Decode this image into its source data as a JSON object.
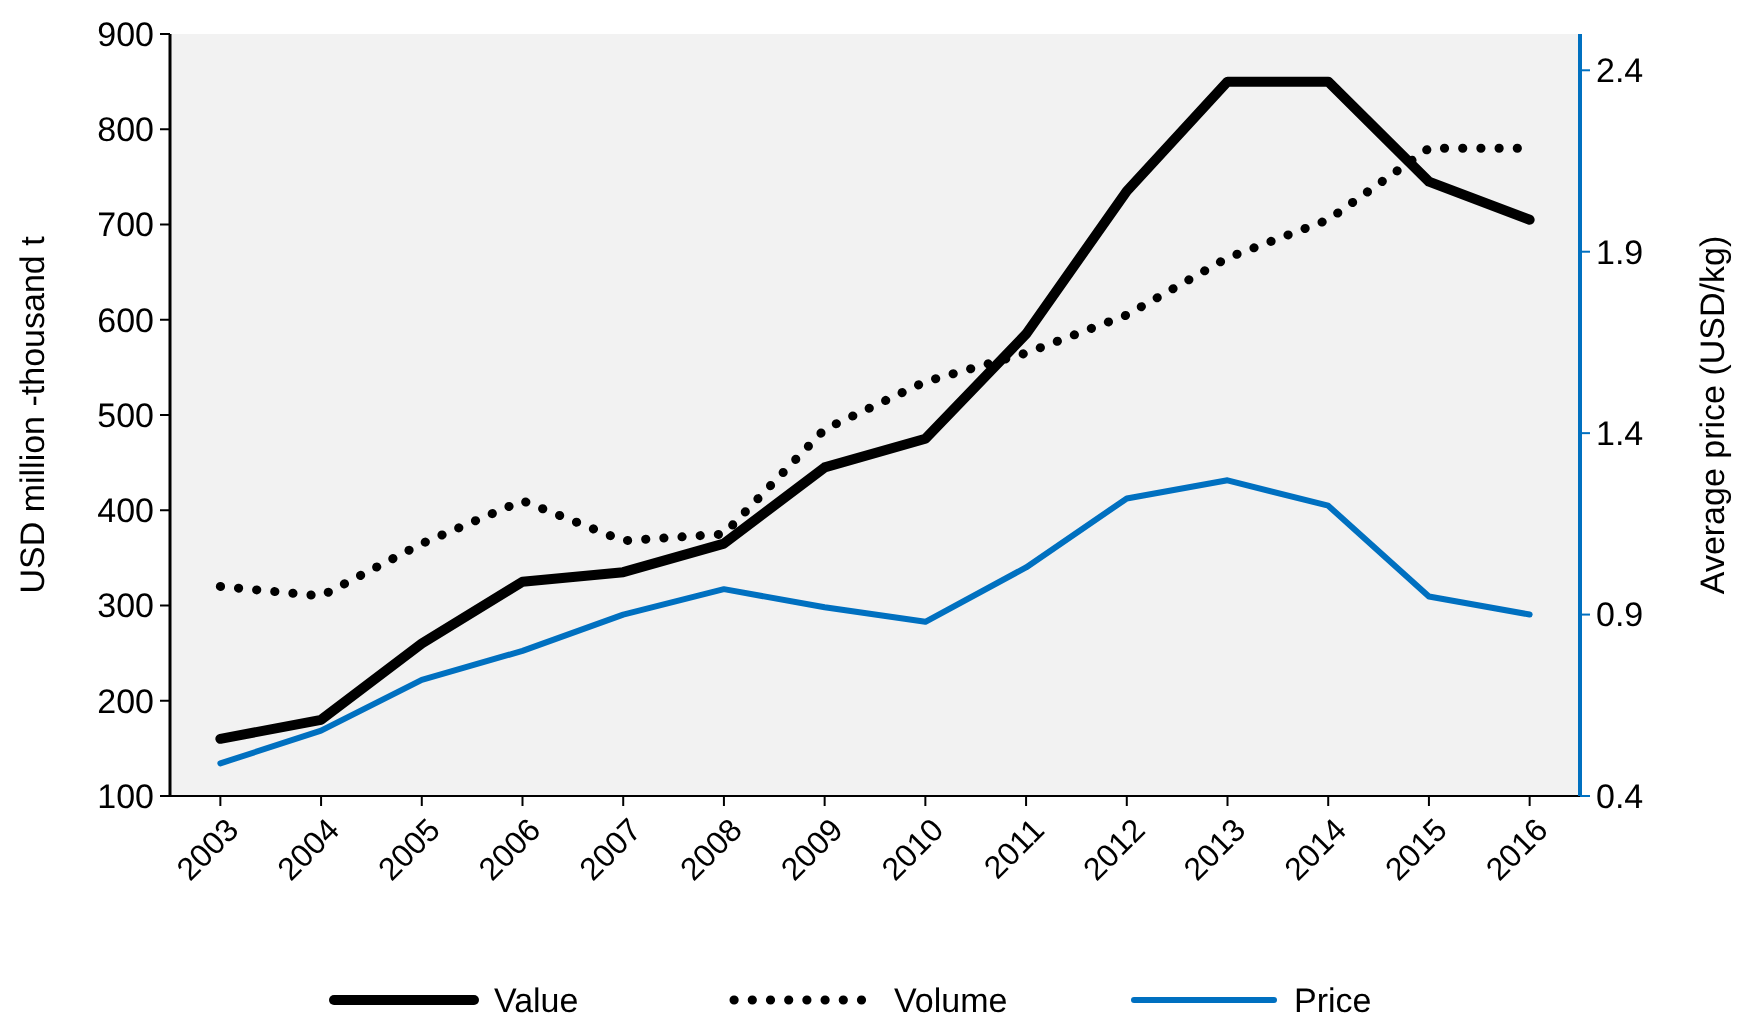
{
  "chart_data": {
    "type": "line",
    "categories": [
      "2003",
      "2004",
      "2005",
      "2006",
      "2007",
      "2008",
      "2009",
      "2010",
      "2011",
      "2012",
      "2013",
      "2014",
      "2015",
      "2016"
    ],
    "series": [
      {
        "name": "Value",
        "color": "#000000",
        "line_style": "solid",
        "values": [
          160,
          180,
          260,
          325,
          335,
          365,
          445,
          475,
          585,
          735,
          850,
          850,
          745,
          705
        ]
      },
      {
        "name": "Volume",
        "color": "#000000",
        "line_style": "dotted",
        "values": [
          320,
          310,
          365,
          410,
          368,
          375,
          485,
          535,
          565,
          605,
          665,
          705,
          780,
          780
        ]
      },
      {
        "name": "Price",
        "color": "#0070c0",
        "line_style": "solid",
        "axis": "y2",
        "values": [
          0.49,
          0.58,
          0.72,
          0.8,
          0.9,
          0.97,
          0.92,
          0.88,
          1.03,
          1.22,
          1.27,
          1.2,
          0.95,
          0.9
        ]
      }
    ],
    "ylabel": "USD million -thousand t",
    "y2label": "Average price (USD/kg)",
    "ylim": [
      100,
      900
    ],
    "yticks": [
      100,
      200,
      300,
      400,
      500,
      600,
      700,
      800,
      900
    ],
    "y2lim": [
      0.4,
      2.5
    ],
    "y2ticks": [
      0.4,
      0.9,
      1.4,
      1.9,
      2.4
    ],
    "grid": false,
    "legend": "bottom"
  }
}
